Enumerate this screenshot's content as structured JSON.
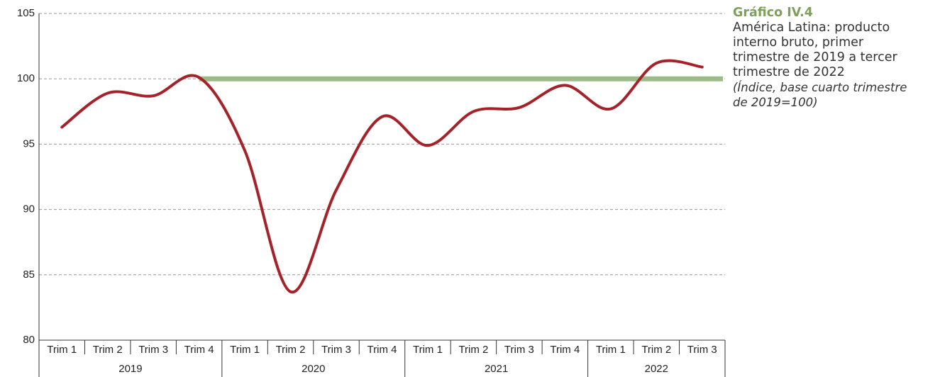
{
  "chart_data": {
    "type": "line",
    "title": "Gráfico IV.4",
    "subtitle": "América Latina: producto interno bruto, primer trimestre de 2019 a tercer trimestre de 2022",
    "note": "(Índice, base cuarto trimestre de 2019=100)",
    "categories": [
      "Trim 1",
      "Trim 2",
      "Trim 3",
      "Trim 4",
      "Trim 1",
      "Trim 2",
      "Trim 3",
      "Trim 4",
      "Trim 1",
      "Trim 2",
      "Trim 3",
      "Trim 4",
      "Trim 1",
      "Trim 2",
      "Trim 3"
    ],
    "groups": [
      "2019",
      "2020",
      "2021",
      "2022"
    ],
    "series": [
      {
        "color": "#a4232a",
        "values": [
          96.3,
          98.9,
          98.7,
          100.1,
          94.5,
          83.7,
          91.5,
          97.1,
          94.9,
          97.5,
          97.8,
          99.5,
          97.7,
          101.2,
          100.9
        ]
      }
    ],
    "reference_line": {
      "value": 100,
      "color": "#9dbb8a"
    },
    "ylim": [
      80,
      105
    ],
    "yticks": [
      80,
      85,
      90,
      95,
      100,
      105
    ],
    "grid": true
  }
}
